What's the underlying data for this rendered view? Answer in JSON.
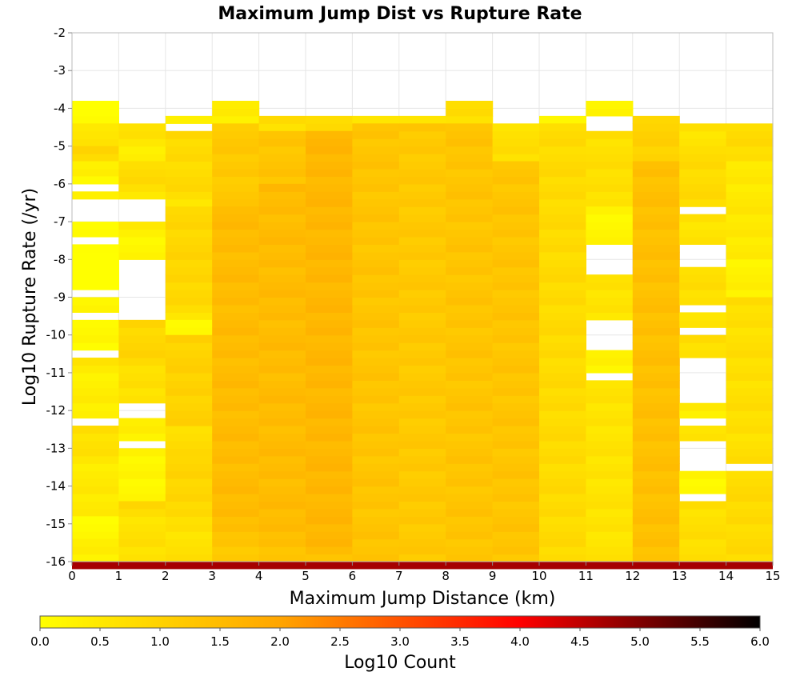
{
  "chart_data": {
    "type": "heatmap",
    "title": "Maximum Jump Dist vs Rupture Rate",
    "xlabel": "Maximum Jump Distance (km)",
    "ylabel": "Log10 Rupture Rate (/yr)",
    "xlim": [
      0,
      15
    ],
    "ylim": [
      -16,
      -2
    ],
    "x_ticks": [
      "0",
      "1",
      "2",
      "3",
      "4",
      "5",
      "6",
      "7",
      "8",
      "9",
      "10",
      "11",
      "12",
      "13",
      "14",
      "15"
    ],
    "y_ticks": [
      "-2",
      "-3",
      "-4",
      "-5",
      "-6",
      "-7",
      "-8",
      "-9",
      "-10",
      "-11",
      "-12",
      "-13",
      "-14",
      "-15",
      "-16"
    ],
    "grid": true,
    "x_bin_width": 1,
    "y_bin_height": 0.2,
    "colorbar": {
      "label": "Log10 Count",
      "range": [
        0,
        6
      ],
      "ticks": [
        "0.0",
        "0.5",
        "1.0",
        "1.5",
        "2.0",
        "2.5",
        "3.0",
        "3.5",
        "4.0",
        "4.5",
        "5.0",
        "5.5",
        "6.0"
      ],
      "colors": [
        "#ffff00",
        "#ffa500",
        "#ff0000",
        "#000000"
      ]
    },
    "columns": [
      {
        "x": 0,
        "segments": [
          {
            "y_from": -4.4,
            "y_to": -3.8,
            "value": 0.3
          },
          {
            "y_from": -5.0,
            "y_to": -4.4,
            "value": 0.8
          },
          {
            "y_from": -5.4,
            "y_to": -5.0,
            "value": 1.1
          },
          {
            "y_from": -5.8,
            "y_to": -5.4,
            "value": 0.6
          },
          {
            "y_from": -6.0,
            "y_to": -5.8,
            "value": 0.4
          },
          {
            "y_from": -6.2,
            "y_to": -6.0,
            "value": null
          },
          {
            "y_from": -6.4,
            "y_to": -6.2,
            "value": 0.5
          },
          {
            "y_from": -7.0,
            "y_to": -6.4,
            "value": null
          },
          {
            "y_from": -7.4,
            "y_to": -7.0,
            "value": 0.4
          },
          {
            "y_from": -7.6,
            "y_to": -7.4,
            "value": null
          },
          {
            "y_from": -8.8,
            "y_to": -7.6,
            "value": 0.15
          },
          {
            "y_from": -9.0,
            "y_to": -8.8,
            "value": null
          },
          {
            "y_from": -9.4,
            "y_to": -9.0,
            "value": 0.5
          },
          {
            "y_from": -9.6,
            "y_to": -9.4,
            "value": null
          },
          {
            "y_from": -10.4,
            "y_to": -9.6,
            "value": 0.4
          },
          {
            "y_from": -10.6,
            "y_to": -10.4,
            "value": null
          },
          {
            "y_from": -12.2,
            "y_to": -10.6,
            "value": 0.6
          },
          {
            "y_from": -12.4,
            "y_to": -12.2,
            "value": null
          },
          {
            "y_from": -14.8,
            "y_to": -12.4,
            "value": 0.7
          },
          {
            "y_from": -15.4,
            "y_to": -14.8,
            "value": 0.3
          },
          {
            "y_from": -16.0,
            "y_to": -15.4,
            "value": 0.6
          }
        ]
      },
      {
        "x": 1,
        "segments": [
          {
            "y_from": -5.4,
            "y_to": -4.4,
            "value": 0.6
          },
          {
            "y_from": -6.4,
            "y_to": -5.4,
            "value": 0.8
          },
          {
            "y_from": -7.0,
            "y_to": -6.4,
            "value": null
          },
          {
            "y_from": -8.0,
            "y_to": -7.0,
            "value": 0.4
          },
          {
            "y_from": -9.6,
            "y_to": -8.0,
            "value": null
          },
          {
            "y_from": -11.8,
            "y_to": -9.6,
            "value": 0.9
          },
          {
            "y_from": -12.2,
            "y_to": -11.8,
            "value": null
          },
          {
            "y_from": -12.8,
            "y_to": -12.2,
            "value": 0.6
          },
          {
            "y_from": -13.0,
            "y_to": -12.8,
            "value": null
          },
          {
            "y_from": -14.4,
            "y_to": -13.0,
            "value": 0.4
          },
          {
            "y_from": -16.0,
            "y_to": -14.4,
            "value": 0.9
          }
        ]
      },
      {
        "x": 2,
        "segments": [
          {
            "y_from": -4.4,
            "y_to": -4.2,
            "value": 0.3
          },
          {
            "y_from": -4.6,
            "y_to": -4.4,
            "value": null
          },
          {
            "y_from": -6.6,
            "y_to": -4.6,
            "value": 0.8
          },
          {
            "y_from": -9.6,
            "y_to": -6.6,
            "value": 0.9
          },
          {
            "y_from": -10.0,
            "y_to": -9.6,
            "value": 0.4
          },
          {
            "y_from": -13.2,
            "y_to": -10.0,
            "value": 1.0
          },
          {
            "y_from": -16.0,
            "y_to": -13.2,
            "value": 0.9
          }
        ]
      },
      {
        "x": 3,
        "segments": [
          {
            "y_from": -4.4,
            "y_to": -3.8,
            "value": 0.4
          },
          {
            "y_from": -6.6,
            "y_to": -4.4,
            "value": 1.2
          },
          {
            "y_from": -16.0,
            "y_to": -6.6,
            "value": 1.5
          }
        ]
      },
      {
        "x": 4,
        "segments": [
          {
            "y_from": -4.6,
            "y_to": -4.2,
            "value": 0.7
          },
          {
            "y_from": -6.0,
            "y_to": -4.6,
            "value": 1.3
          },
          {
            "y_from": -16.0,
            "y_to": -6.0,
            "value": 1.5
          }
        ]
      },
      {
        "x": 5,
        "segments": [
          {
            "y_from": -4.6,
            "y_to": -4.2,
            "value": 0.8
          },
          {
            "y_from": -16.0,
            "y_to": -4.6,
            "value": 1.6
          }
        ]
      },
      {
        "x": 6,
        "segments": [
          {
            "y_from": -4.4,
            "y_to": -4.2,
            "value": 0.6
          },
          {
            "y_from": -16.0,
            "y_to": -4.4,
            "value": 1.3
          }
        ]
      },
      {
        "x": 7,
        "segments": [
          {
            "y_from": -4.4,
            "y_to": -4.2,
            "value": 0.5
          },
          {
            "y_from": -16.0,
            "y_to": -4.4,
            "value": 1.2
          }
        ]
      },
      {
        "x": 8,
        "segments": [
          {
            "y_from": -4.4,
            "y_to": -3.8,
            "value": 0.7
          },
          {
            "y_from": -16.0,
            "y_to": -4.4,
            "value": 1.3
          }
        ]
      },
      {
        "x": 9,
        "segments": [
          {
            "y_from": -5.4,
            "y_to": -4.4,
            "value": 0.7
          },
          {
            "y_from": -16.0,
            "y_to": -5.4,
            "value": 1.3
          }
        ]
      },
      {
        "x": 10,
        "segments": [
          {
            "y_from": -4.4,
            "y_to": -4.2,
            "value": 0.3
          },
          {
            "y_from": -16.0,
            "y_to": -4.4,
            "value": 0.8
          }
        ]
      },
      {
        "x": 11,
        "segments": [
          {
            "y_from": -4.2,
            "y_to": -3.8,
            "value": 0.2
          },
          {
            "y_from": -4.6,
            "y_to": -4.2,
            "value": null
          },
          {
            "y_from": -6.6,
            "y_to": -4.6,
            "value": 0.7
          },
          {
            "y_from": -7.6,
            "y_to": -6.6,
            "value": 0.2
          },
          {
            "y_from": -8.4,
            "y_to": -7.6,
            "value": null
          },
          {
            "y_from": -9.6,
            "y_to": -8.4,
            "value": 0.6
          },
          {
            "y_from": -10.4,
            "y_to": -9.6,
            "value": null
          },
          {
            "y_from": -11.0,
            "y_to": -10.4,
            "value": 0.3
          },
          {
            "y_from": -11.2,
            "y_to": -11.0,
            "value": null
          },
          {
            "y_from": -16.0,
            "y_to": -11.2,
            "value": 0.6
          }
        ]
      },
      {
        "x": 12,
        "segments": [
          {
            "y_from": -5.4,
            "y_to": -4.2,
            "value": 1.0
          },
          {
            "y_from": -16.0,
            "y_to": -5.4,
            "value": 1.4
          }
        ]
      },
      {
        "x": 13,
        "segments": [
          {
            "y_from": -5.0,
            "y_to": -4.4,
            "value": 0.6
          },
          {
            "y_from": -6.6,
            "y_to": -5.0,
            "value": 0.8
          },
          {
            "y_from": -6.8,
            "y_to": -6.6,
            "value": null
          },
          {
            "y_from": -7.6,
            "y_to": -6.8,
            "value": 0.6
          },
          {
            "y_from": -8.2,
            "y_to": -7.6,
            "value": null
          },
          {
            "y_from": -9.2,
            "y_to": -8.2,
            "value": 0.7
          },
          {
            "y_from": -9.4,
            "y_to": -9.2,
            "value": null
          },
          {
            "y_from": -9.8,
            "y_to": -9.4,
            "value": 0.6
          },
          {
            "y_from": -10.0,
            "y_to": -9.8,
            "value": null
          },
          {
            "y_from": -10.6,
            "y_to": -10.0,
            "value": 0.7
          },
          {
            "y_from": -11.8,
            "y_to": -10.6,
            "value": null
          },
          {
            "y_from": -12.2,
            "y_to": -11.8,
            "value": 0.4
          },
          {
            "y_from": -12.4,
            "y_to": -12.2,
            "value": null
          },
          {
            "y_from": -12.8,
            "y_to": -12.4,
            "value": 0.7
          },
          {
            "y_from": -13.6,
            "y_to": -12.8,
            "value": null
          },
          {
            "y_from": -14.2,
            "y_to": -13.6,
            "value": 0.2
          },
          {
            "y_from": -14.4,
            "y_to": -14.2,
            "value": null
          },
          {
            "y_from": -16.0,
            "y_to": -14.4,
            "value": 0.7
          }
        ]
      },
      {
        "x": 14,
        "segments": [
          {
            "y_from": -5.4,
            "y_to": -4.4,
            "value": 0.8
          },
          {
            "y_from": -8.0,
            "y_to": -5.4,
            "value": 0.5
          },
          {
            "y_from": -9.0,
            "y_to": -8.0,
            "value": 0.3
          },
          {
            "y_from": -13.4,
            "y_to": -9.0,
            "value": 0.7
          },
          {
            "y_from": -13.6,
            "y_to": -13.4,
            "value": null
          },
          {
            "y_from": -16.0,
            "y_to": -13.6,
            "value": 0.8
          }
        ]
      }
    ],
    "bottom_row": {
      "y_from": -16.2,
      "y_to": -16.0,
      "value": 4.7
    }
  }
}
